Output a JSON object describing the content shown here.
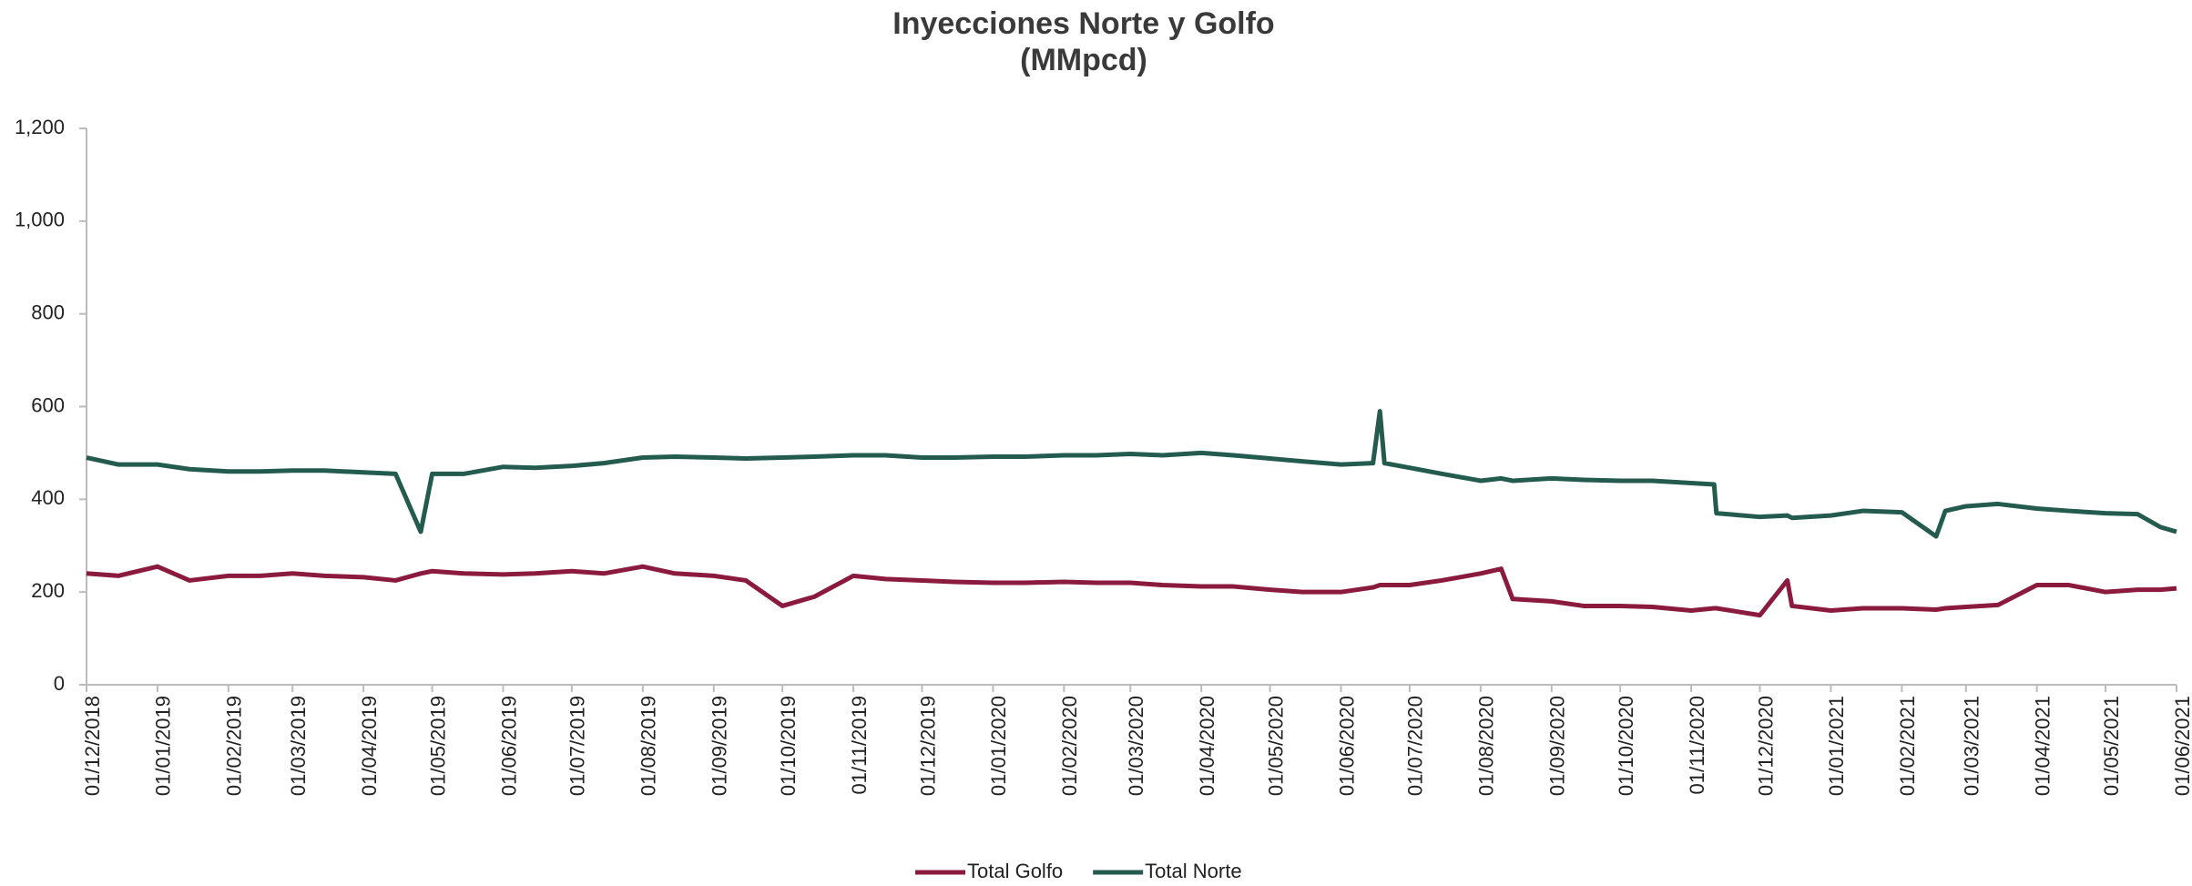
{
  "chart_data": {
    "type": "line",
    "title": "Inyecciones Norte y Golfo",
    "subtitle": "(MMpcd)",
    "x": [
      "01/12/2018",
      "15/12/2018",
      "01/01/2019",
      "15/01/2019",
      "01/02/2019",
      "15/02/2019",
      "01/03/2019",
      "15/03/2019",
      "01/04/2019",
      "15/04/2019",
      "26/04/2019",
      "01/05/2019",
      "15/05/2019",
      "01/06/2019",
      "15/06/2019",
      "01/07/2019",
      "15/07/2019",
      "01/08/2019",
      "15/08/2019",
      "01/09/2019",
      "15/09/2019",
      "01/10/2019",
      "15/10/2019",
      "01/11/2019",
      "15/11/2019",
      "01/12/2019",
      "15/12/2019",
      "01/01/2020",
      "15/01/2020",
      "01/02/2020",
      "15/02/2020",
      "01/03/2020",
      "15/03/2020",
      "01/04/2020",
      "15/04/2020",
      "01/05/2020",
      "15/05/2020",
      "01/06/2020",
      "15/06/2020",
      "18/06/2020",
      "20/06/2020",
      "01/07/2020",
      "15/07/2020",
      "01/08/2020",
      "10/08/2020",
      "15/08/2020",
      "01/09/2020",
      "15/09/2020",
      "01/10/2020",
      "15/10/2020",
      "01/11/2020",
      "11/11/2020",
      "12/11/2020",
      "01/12/2020",
      "13/12/2020",
      "15/12/2020",
      "01/01/2021",
      "15/01/2021",
      "01/02/2021",
      "16/02/2021",
      "20/02/2021",
      "01/03/2021",
      "15/03/2021",
      "01/04/2021",
      "15/04/2021",
      "01/05/2021",
      "15/05/2021",
      "25/05/2021",
      "01/06/2021"
    ],
    "series": [
      {
        "name": "Total Golfo",
        "color": "#8b1a3f",
        "values": [
          240,
          235,
          255,
          225,
          235,
          235,
          240,
          235,
          232,
          225,
          240,
          245,
          240,
          238,
          240,
          245,
          240,
          255,
          240,
          235,
          225,
          170,
          190,
          235,
          228,
          225,
          222,
          220,
          220,
          222,
          220,
          220,
          215,
          212,
          212,
          205,
          200,
          200,
          210,
          215,
          215,
          215,
          225,
          240,
          250,
          185,
          180,
          170,
          170,
          168,
          160,
          165,
          165,
          150,
          225,
          170,
          160,
          165,
          165,
          162,
          165,
          168,
          172,
          215,
          215,
          200,
          205,
          205,
          208
        ]
      },
      {
        "name": "Total Norte",
        "color": "#235b4e",
        "values": [
          490,
          475,
          475,
          465,
          460,
          460,
          462,
          462,
          458,
          455,
          330,
          455,
          455,
          470,
          468,
          472,
          478,
          490,
          492,
          490,
          488,
          490,
          492,
          495,
          495,
          490,
          490,
          492,
          492,
          495,
          495,
          498,
          495,
          500,
          495,
          488,
          482,
          475,
          478,
          590,
          478,
          468,
          455,
          440,
          445,
          440,
          445,
          442,
          440,
          440,
          435,
          432,
          370,
          362,
          365,
          360,
          365,
          375,
          372,
          320,
          375,
          385,
          390,
          380,
          375,
          370,
          368,
          340,
          330
        ]
      }
    ],
    "ylim": [
      0,
      1200
    ],
    "yticks": [
      0,
      200,
      400,
      600,
      800,
      {
        "value": 1000,
        "label": "1,000"
      },
      {
        "value": 1200,
        "label": "1,200"
      }
    ],
    "xlim": [
      "01/12/2018",
      "01/06/2021"
    ],
    "xticks": [
      "01/12/2018",
      "01/01/2019",
      "01/02/2019",
      "01/03/2019",
      "01/04/2019",
      "01/05/2019",
      "01/06/2019",
      "01/07/2019",
      "01/08/2019",
      "01/09/2019",
      "01/10/2019",
      "01/11/2019",
      "01/12/2019",
      "01/01/2020",
      "01/02/2020",
      "01/03/2020",
      "01/04/2020",
      "01/05/2020",
      "01/06/2020",
      "01/07/2020",
      "01/08/2020",
      "01/09/2020",
      "01/10/2020",
      "01/11/2020",
      "01/12/2020",
      "01/01/2021",
      "01/02/2021",
      "01/03/2021",
      "01/04/2021",
      "01/05/2021",
      "01/06/2021"
    ],
    "grid": false,
    "legend": "bottom"
  }
}
